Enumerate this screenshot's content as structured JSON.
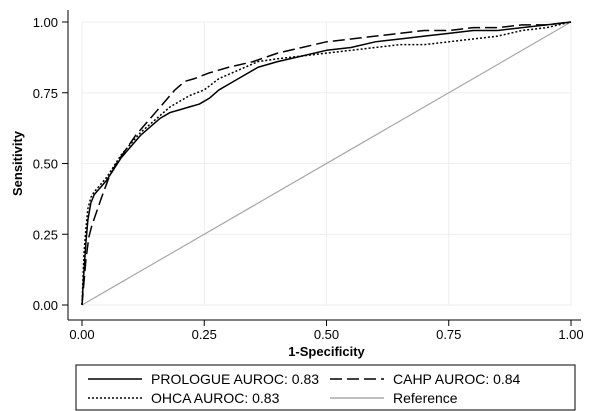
{
  "chart_data": {
    "type": "line",
    "xlabel": "1-Specificity",
    "ylabel": "Sensitivity",
    "xlim": [
      0,
      1
    ],
    "ylim": [
      0,
      1
    ],
    "xticks": [
      "0.00",
      "0.25",
      "0.50",
      "0.75",
      "1.00"
    ],
    "yticks": [
      "0.00",
      "0.25",
      "0.50",
      "0.75",
      "1.00"
    ],
    "grid": true,
    "legend_position": "bottom",
    "series": [
      {
        "name": "PROLOGUE AUROC: 0.83",
        "style": "solid",
        "color": "#000000",
        "x": [
          0,
          0.004,
          0.008,
          0.012,
          0.018,
          0.025,
          0.035,
          0.05,
          0.065,
          0.08,
          0.1,
          0.12,
          0.14,
          0.16,
          0.18,
          0.2,
          0.22,
          0.24,
          0.26,
          0.28,
          0.3,
          0.33,
          0.36,
          0.4,
          0.45,
          0.5,
          0.55,
          0.6,
          0.65,
          0.7,
          0.75,
          0.8,
          0.85,
          0.9,
          0.95,
          1.0
        ],
        "y": [
          0,
          0.12,
          0.22,
          0.3,
          0.36,
          0.39,
          0.41,
          0.44,
          0.48,
          0.52,
          0.56,
          0.6,
          0.63,
          0.66,
          0.68,
          0.69,
          0.7,
          0.71,
          0.73,
          0.76,
          0.78,
          0.81,
          0.84,
          0.86,
          0.88,
          0.9,
          0.91,
          0.93,
          0.94,
          0.95,
          0.96,
          0.97,
          0.97,
          0.98,
          0.99,
          1.0
        ]
      },
      {
        "name": "CAHP AUROC: 0.84",
        "style": "longdash",
        "color": "#000000",
        "x": [
          0,
          0.004,
          0.008,
          0.014,
          0.02,
          0.03,
          0.04,
          0.055,
          0.07,
          0.09,
          0.11,
          0.13,
          0.15,
          0.17,
          0.19,
          0.21,
          0.23,
          0.26,
          0.3,
          0.35,
          0.4,
          0.45,
          0.5,
          0.55,
          0.6,
          0.65,
          0.7,
          0.75,
          0.8,
          0.85,
          0.9,
          0.95,
          1.0
        ],
        "y": [
          0,
          0.08,
          0.16,
          0.24,
          0.28,
          0.33,
          0.38,
          0.45,
          0.5,
          0.55,
          0.6,
          0.64,
          0.68,
          0.72,
          0.76,
          0.79,
          0.8,
          0.82,
          0.84,
          0.86,
          0.89,
          0.91,
          0.93,
          0.94,
          0.95,
          0.96,
          0.97,
          0.97,
          0.98,
          0.98,
          0.99,
          0.99,
          1.0
        ]
      },
      {
        "name": "OHCA AUROC: 0.83",
        "style": "dotted",
        "color": "#000000",
        "x": [
          0,
          0.004,
          0.008,
          0.012,
          0.018,
          0.025,
          0.035,
          0.05,
          0.065,
          0.08,
          0.1,
          0.12,
          0.14,
          0.16,
          0.18,
          0.2,
          0.22,
          0.25,
          0.28,
          0.32,
          0.36,
          0.4,
          0.45,
          0.5,
          0.55,
          0.6,
          0.65,
          0.7,
          0.75,
          0.8,
          0.85,
          0.9,
          0.95,
          1.0
        ],
        "y": [
          0,
          0.18,
          0.27,
          0.34,
          0.38,
          0.4,
          0.42,
          0.45,
          0.49,
          0.53,
          0.57,
          0.61,
          0.64,
          0.67,
          0.7,
          0.72,
          0.74,
          0.76,
          0.8,
          0.83,
          0.86,
          0.87,
          0.88,
          0.89,
          0.9,
          0.91,
          0.92,
          0.92,
          0.93,
          0.94,
          0.95,
          0.97,
          0.98,
          1.0
        ]
      },
      {
        "name": "Reference",
        "style": "solid",
        "color": "#a8a8a8",
        "x": [
          0,
          1
        ],
        "y": [
          0,
          1
        ]
      }
    ]
  }
}
